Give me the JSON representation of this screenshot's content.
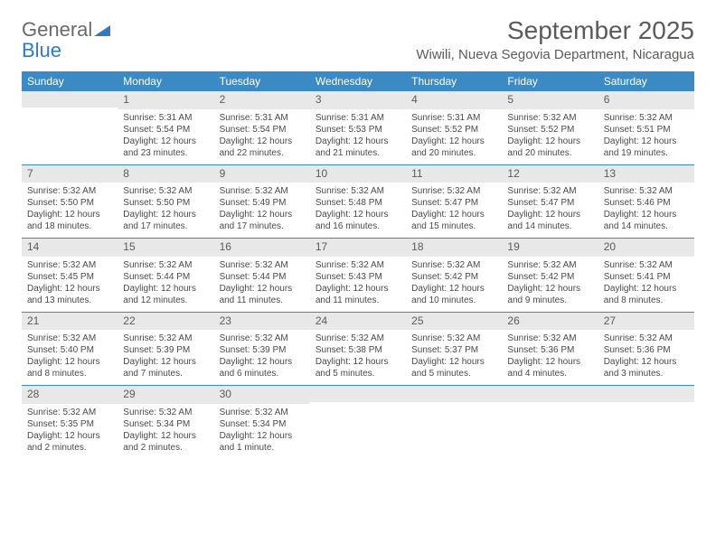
{
  "logo": {
    "word1": "General",
    "word2": "Blue"
  },
  "title": "September 2025",
  "location": "Wiwili, Nueva Segovia Department, Nicaragua",
  "colors": {
    "header_bg": "#3b8ac4",
    "header_text": "#ffffff",
    "daynum_bg": "#e8e8e8",
    "text": "#4a4a4a",
    "title_text": "#5b5b5b",
    "week_border": "#3b8ac4",
    "logo_gray": "#6a6a6a",
    "logo_blue": "#2f7ac6"
  },
  "typography": {
    "title_fontsize": 28,
    "location_fontsize": 15,
    "dow_fontsize": 12,
    "daynum_fontsize": 12,
    "body_fontsize": 10
  },
  "dow": [
    "Sunday",
    "Monday",
    "Tuesday",
    "Wednesday",
    "Thursday",
    "Friday",
    "Saturday"
  ],
  "weeks": [
    [
      {
        "n": "",
        "sr": "",
        "ss": "",
        "dl": ""
      },
      {
        "n": "1",
        "sr": "Sunrise: 5:31 AM",
        "ss": "Sunset: 5:54 PM",
        "dl": "Daylight: 12 hours and 23 minutes."
      },
      {
        "n": "2",
        "sr": "Sunrise: 5:31 AM",
        "ss": "Sunset: 5:54 PM",
        "dl": "Daylight: 12 hours and 22 minutes."
      },
      {
        "n": "3",
        "sr": "Sunrise: 5:31 AM",
        "ss": "Sunset: 5:53 PM",
        "dl": "Daylight: 12 hours and 21 minutes."
      },
      {
        "n": "4",
        "sr": "Sunrise: 5:31 AM",
        "ss": "Sunset: 5:52 PM",
        "dl": "Daylight: 12 hours and 20 minutes."
      },
      {
        "n": "5",
        "sr": "Sunrise: 5:32 AM",
        "ss": "Sunset: 5:52 PM",
        "dl": "Daylight: 12 hours and 20 minutes."
      },
      {
        "n": "6",
        "sr": "Sunrise: 5:32 AM",
        "ss": "Sunset: 5:51 PM",
        "dl": "Daylight: 12 hours and 19 minutes."
      }
    ],
    [
      {
        "n": "7",
        "sr": "Sunrise: 5:32 AM",
        "ss": "Sunset: 5:50 PM",
        "dl": "Daylight: 12 hours and 18 minutes."
      },
      {
        "n": "8",
        "sr": "Sunrise: 5:32 AM",
        "ss": "Sunset: 5:50 PM",
        "dl": "Daylight: 12 hours and 17 minutes."
      },
      {
        "n": "9",
        "sr": "Sunrise: 5:32 AM",
        "ss": "Sunset: 5:49 PM",
        "dl": "Daylight: 12 hours and 17 minutes."
      },
      {
        "n": "10",
        "sr": "Sunrise: 5:32 AM",
        "ss": "Sunset: 5:48 PM",
        "dl": "Daylight: 12 hours and 16 minutes."
      },
      {
        "n": "11",
        "sr": "Sunrise: 5:32 AM",
        "ss": "Sunset: 5:47 PM",
        "dl": "Daylight: 12 hours and 15 minutes."
      },
      {
        "n": "12",
        "sr": "Sunrise: 5:32 AM",
        "ss": "Sunset: 5:47 PM",
        "dl": "Daylight: 12 hours and 14 minutes."
      },
      {
        "n": "13",
        "sr": "Sunrise: 5:32 AM",
        "ss": "Sunset: 5:46 PM",
        "dl": "Daylight: 12 hours and 14 minutes."
      }
    ],
    [
      {
        "n": "14",
        "sr": "Sunrise: 5:32 AM",
        "ss": "Sunset: 5:45 PM",
        "dl": "Daylight: 12 hours and 13 minutes."
      },
      {
        "n": "15",
        "sr": "Sunrise: 5:32 AM",
        "ss": "Sunset: 5:44 PM",
        "dl": "Daylight: 12 hours and 12 minutes."
      },
      {
        "n": "16",
        "sr": "Sunrise: 5:32 AM",
        "ss": "Sunset: 5:44 PM",
        "dl": "Daylight: 12 hours and 11 minutes."
      },
      {
        "n": "17",
        "sr": "Sunrise: 5:32 AM",
        "ss": "Sunset: 5:43 PM",
        "dl": "Daylight: 12 hours and 11 minutes."
      },
      {
        "n": "18",
        "sr": "Sunrise: 5:32 AM",
        "ss": "Sunset: 5:42 PM",
        "dl": "Daylight: 12 hours and 10 minutes."
      },
      {
        "n": "19",
        "sr": "Sunrise: 5:32 AM",
        "ss": "Sunset: 5:42 PM",
        "dl": "Daylight: 12 hours and 9 minutes."
      },
      {
        "n": "20",
        "sr": "Sunrise: 5:32 AM",
        "ss": "Sunset: 5:41 PM",
        "dl": "Daylight: 12 hours and 8 minutes."
      }
    ],
    [
      {
        "n": "21",
        "sr": "Sunrise: 5:32 AM",
        "ss": "Sunset: 5:40 PM",
        "dl": "Daylight: 12 hours and 8 minutes."
      },
      {
        "n": "22",
        "sr": "Sunrise: 5:32 AM",
        "ss": "Sunset: 5:39 PM",
        "dl": "Daylight: 12 hours and 7 minutes."
      },
      {
        "n": "23",
        "sr": "Sunrise: 5:32 AM",
        "ss": "Sunset: 5:39 PM",
        "dl": "Daylight: 12 hours and 6 minutes."
      },
      {
        "n": "24",
        "sr": "Sunrise: 5:32 AM",
        "ss": "Sunset: 5:38 PM",
        "dl": "Daylight: 12 hours and 5 minutes."
      },
      {
        "n": "25",
        "sr": "Sunrise: 5:32 AM",
        "ss": "Sunset: 5:37 PM",
        "dl": "Daylight: 12 hours and 5 minutes."
      },
      {
        "n": "26",
        "sr": "Sunrise: 5:32 AM",
        "ss": "Sunset: 5:36 PM",
        "dl": "Daylight: 12 hours and 4 minutes."
      },
      {
        "n": "27",
        "sr": "Sunrise: 5:32 AM",
        "ss": "Sunset: 5:36 PM",
        "dl": "Daylight: 12 hours and 3 minutes."
      }
    ],
    [
      {
        "n": "28",
        "sr": "Sunrise: 5:32 AM",
        "ss": "Sunset: 5:35 PM",
        "dl": "Daylight: 12 hours and 2 minutes."
      },
      {
        "n": "29",
        "sr": "Sunrise: 5:32 AM",
        "ss": "Sunset: 5:34 PM",
        "dl": "Daylight: 12 hours and 2 minutes."
      },
      {
        "n": "30",
        "sr": "Sunrise: 5:32 AM",
        "ss": "Sunset: 5:34 PM",
        "dl": "Daylight: 12 hours and 1 minute."
      },
      {
        "n": "",
        "sr": "",
        "ss": "",
        "dl": ""
      },
      {
        "n": "",
        "sr": "",
        "ss": "",
        "dl": ""
      },
      {
        "n": "",
        "sr": "",
        "ss": "",
        "dl": ""
      },
      {
        "n": "",
        "sr": "",
        "ss": "",
        "dl": ""
      }
    ]
  ]
}
